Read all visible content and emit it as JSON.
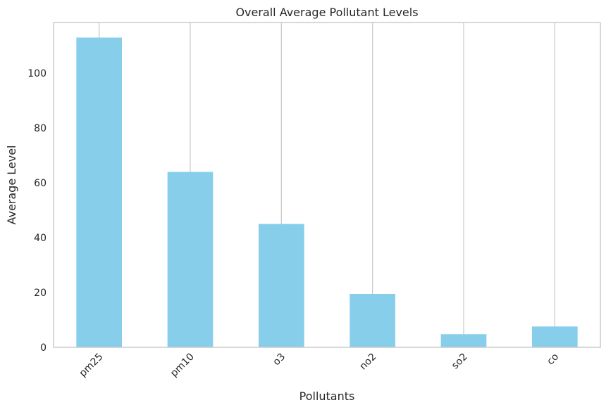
{
  "chart_data": {
    "type": "bar",
    "title": "Overall Average Pollutant Levels",
    "xlabel": "Pollutants",
    "ylabel": "Average Level",
    "categories": [
      "pm25",
      "pm10",
      "o3",
      "no2",
      "so2",
      "co"
    ],
    "values": [
      113,
      64,
      45,
      19.5,
      4.8,
      7.6
    ],
    "ylim": [
      0,
      118.5
    ],
    "yticks": [
      0,
      20,
      40,
      60,
      80,
      100
    ],
    "ytick_labels": [
      "0",
      "20",
      "40",
      "60",
      "80",
      "100"
    ],
    "xtick_rotation": 45,
    "grid": "x",
    "legend": "none",
    "colors": {
      "bar": "#87ceeb",
      "grid": "#cccccc",
      "spine": "#cccccc",
      "text": "#262626"
    }
  }
}
